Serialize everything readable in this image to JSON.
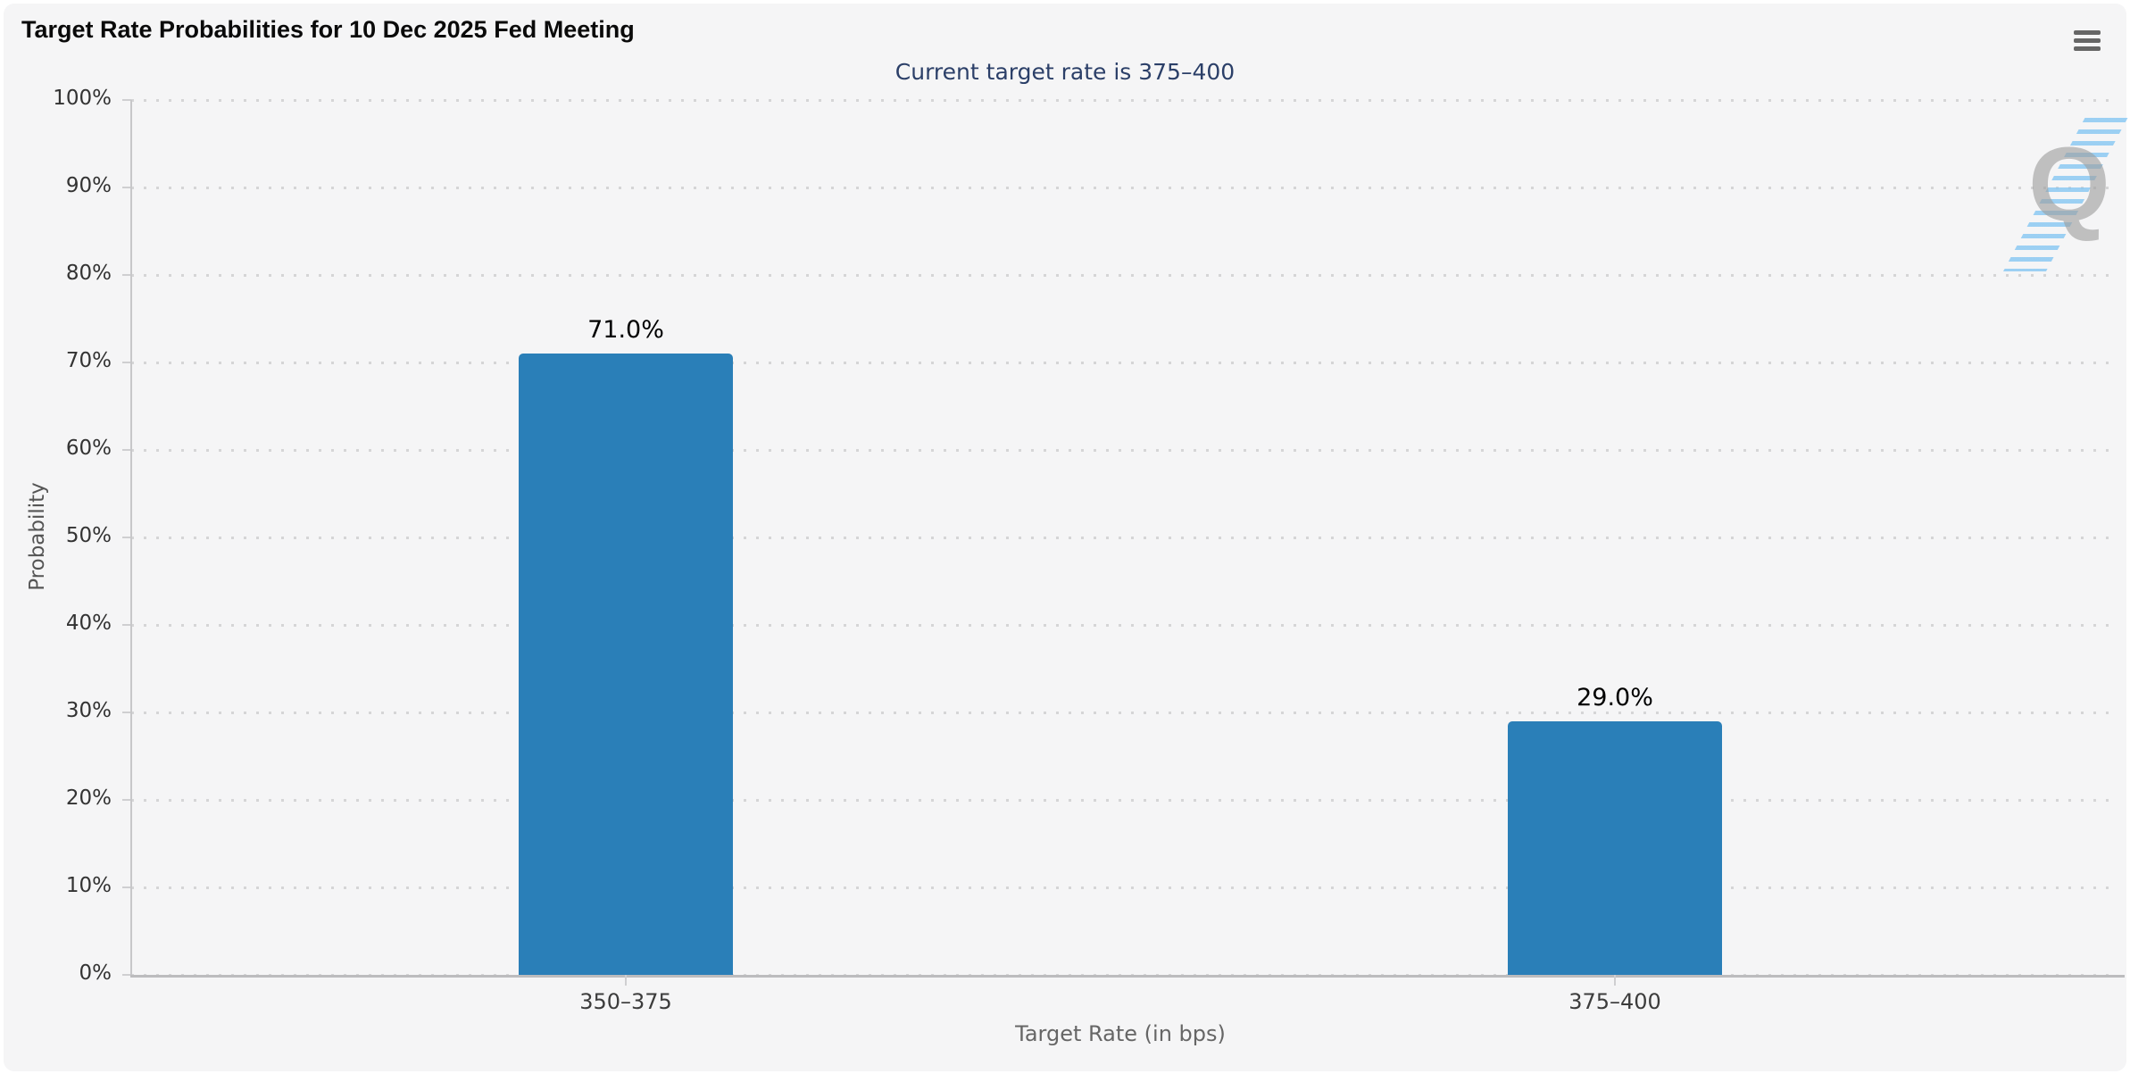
{
  "header": {
    "menu_icon": "hamburger-icon"
  },
  "chart_data": {
    "type": "bar",
    "title": "Target Rate Probabilities for 10 Dec 2025 Fed Meeting",
    "subtitle": "Current target rate is 375–400",
    "categories": [
      "350–375",
      "375–400"
    ],
    "values": [
      71.0,
      29.0
    ],
    "value_labels": [
      "71.0%",
      "29.0%"
    ],
    "xlabel": "Target Rate (in bps)",
    "ylabel": "Probability",
    "ylim": [
      0,
      100
    ],
    "ytick_step": 10,
    "ytick_labels": [
      "0%",
      "10%",
      "20%",
      "30%",
      "40%",
      "50%",
      "60%",
      "70%",
      "80%",
      "90%",
      "100%"
    ],
    "bar_color": "#2a7fb8",
    "grid": "dotted horizontal",
    "legend": "none",
    "colors": {
      "card_background": "#f5f5f6",
      "page_background": "#ffffff",
      "subtitle_text": "#2b3f68",
      "axis_line": "#c7c7c9",
      "grid_dot": "#d5d5d6",
      "menu_icon": "#666666",
      "watermark_gray": "#9f9f9f",
      "watermark_blue": "#85c6f2"
    }
  },
  "watermark": {
    "letter": "Q"
  }
}
